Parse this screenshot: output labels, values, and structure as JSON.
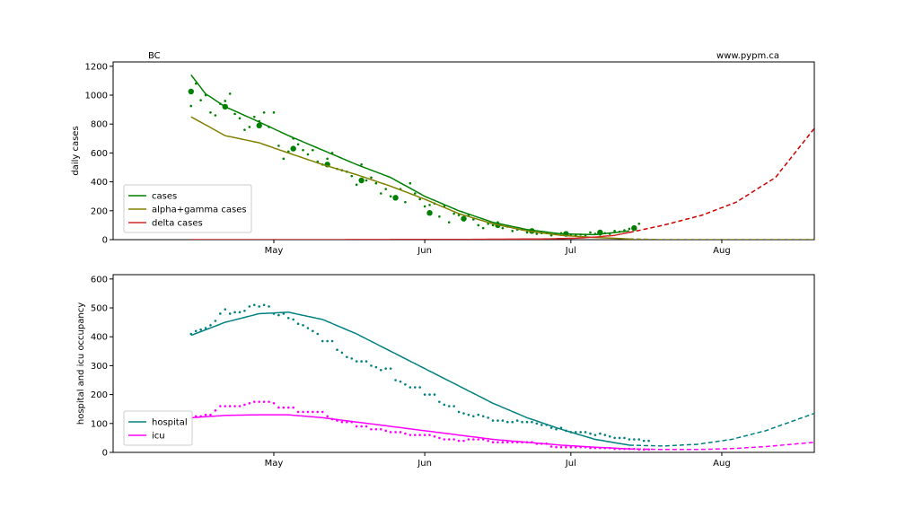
{
  "header": {
    "left": "BC",
    "right": "www.pypm.ca"
  },
  "colors": {
    "cases": "#008000",
    "alpha": "#808000",
    "delta": "#d62728",
    "deltaProj": "#cc0000",
    "hospital": "#008080",
    "icu": "#ff00ff"
  },
  "chart_data": [
    {
      "type": "line",
      "ylabel": "daily cases",
      "ylim": [
        0,
        1230
      ],
      "yticks": [
        0,
        200,
        400,
        600,
        800,
        1000,
        1200
      ],
      "xticks": [
        {
          "day": 30,
          "label": "May"
        },
        {
          "day": 61,
          "label": "Jun"
        },
        {
          "day": 91,
          "label": "Jul"
        },
        {
          "day": 122,
          "label": "Aug"
        }
      ],
      "xlim": [
        -3,
        141
      ],
      "x_unit": "days since Apr 1",
      "data_end_day": 103,
      "legend": [
        "cases",
        "alpha+gamma cases",
        "delta cases"
      ],
      "legend_position": "lower-left",
      "series": [
        {
          "name": "cases",
          "x": [
            13,
            16,
            20,
            26,
            33,
            40,
            47,
            54,
            61,
            68,
            75,
            82,
            89,
            96,
            103
          ],
          "values": [
            1140,
            1010,
            920,
            830,
            720,
            620,
            520,
            430,
            300,
            200,
            120,
            70,
            40,
            35,
            60
          ]
        },
        {
          "name": "alpha+gamma cases",
          "x": [
            13,
            20,
            27,
            33,
            40,
            47,
            54,
            61,
            68,
            75,
            82,
            89,
            96,
            103,
            110,
            141
          ],
          "values": [
            850,
            720,
            670,
            600,
            520,
            450,
            370,
            280,
            180,
            110,
            60,
            30,
            15,
            5,
            0,
            0
          ]
        },
        {
          "name": "delta cases",
          "x": [
            13,
            40,
            70,
            85,
            92,
            96,
            100,
            103,
            110,
            118,
            125,
            133,
            141
          ],
          "values": [
            0,
            0,
            2,
            5,
            10,
            18,
            30,
            50,
            100,
            170,
            260,
            430,
            770
          ]
        }
      ],
      "weekly_points": {
        "x": [
          13,
          20,
          27,
          34,
          41,
          48,
          55,
          62,
          69,
          76,
          83,
          90,
          97,
          104
        ],
        "values": [
          1025,
          920,
          790,
          630,
          520,
          410,
          290,
          185,
          145,
          100,
          60,
          40,
          50,
          80
        ]
      },
      "daily_points": {
        "x": [
          13,
          14,
          15,
          16,
          17,
          18,
          19,
          20,
          21,
          22,
          23,
          24,
          25,
          26,
          27,
          28,
          29,
          30,
          31,
          32,
          33,
          34,
          35,
          36,
          37,
          38,
          39,
          40,
          41,
          42,
          43,
          44,
          45,
          46,
          47,
          48,
          49,
          50,
          51,
          52,
          53,
          54,
          55,
          56,
          57,
          58,
          59,
          60,
          61,
          62,
          63,
          64,
          65,
          66,
          67,
          68,
          69,
          70,
          71,
          72,
          73,
          74,
          75,
          76,
          77,
          78,
          79,
          80,
          81,
          82,
          83,
          84,
          85,
          86,
          87,
          88,
          89,
          90,
          91,
          92,
          93,
          94,
          95,
          96,
          97,
          98,
          99,
          100,
          101,
          102,
          103,
          104,
          105
        ],
        "values": [
          925,
          1080,
          965,
          1000,
          880,
          860,
          940,
          960,
          1010,
          870,
          840,
          760,
          780,
          850,
          820,
          880,
          780,
          880,
          650,
          560,
          610,
          700,
          660,
          620,
          590,
          620,
          540,
          520,
          560,
          600,
          490,
          480,
          470,
          440,
          380,
          520,
          410,
          430,
          390,
          320,
          350,
          300,
          280,
          350,
          260,
          390,
          320,
          280,
          230,
          240,
          250,
          160,
          230,
          120,
          180,
          170,
          140,
          170,
          140,
          100,
          80,
          110,
          100,
          120,
          80,
          90,
          60,
          70,
          70,
          50,
          55,
          40,
          45,
          45,
          30,
          40,
          45,
          40,
          35,
          30,
          35,
          30,
          50,
          40,
          35,
          45,
          40,
          60,
          55,
          65,
          75,
          90,
          110
        ]
      }
    },
    {
      "type": "line",
      "ylabel": "hospital and icu occupancy",
      "ylim": [
        0,
        615
      ],
      "yticks": [
        0,
        100,
        200,
        300,
        400,
        500,
        600
      ],
      "xticks": [
        {
          "day": 30,
          "label": "May"
        },
        {
          "day": 61,
          "label": "Jun"
        },
        {
          "day": 91,
          "label": "Jul"
        },
        {
          "day": 122,
          "label": "Aug"
        }
      ],
      "xlim": [
        -3,
        141
      ],
      "x_unit": "days since Apr 1",
      "data_end_day": 103,
      "legend": [
        "hospital",
        "icu"
      ],
      "legend_position": "lower-left",
      "series": [
        {
          "name": "hospital",
          "x": [
            13,
            20,
            27,
            33,
            40,
            47,
            54,
            61,
            68,
            75,
            82,
            89,
            96,
            103,
            110,
            117,
            124,
            131,
            141
          ],
          "values": [
            405,
            450,
            480,
            485,
            460,
            410,
            350,
            290,
            230,
            170,
            120,
            80,
            45,
            25,
            22,
            28,
            45,
            75,
            135
          ]
        },
        {
          "name": "icu",
          "x": [
            13,
            20,
            27,
            33,
            40,
            47,
            54,
            61,
            68,
            75,
            82,
            89,
            96,
            103,
            110,
            117,
            124,
            131,
            141
          ],
          "values": [
            120,
            128,
            130,
            130,
            120,
            105,
            90,
            75,
            60,
            45,
            35,
            25,
            18,
            12,
            10,
            10,
            13,
            20,
            35
          ]
        }
      ],
      "hospital_points": {
        "x": [
          13,
          14,
          15,
          16,
          17,
          18,
          19,
          20,
          21,
          22,
          23,
          24,
          25,
          26,
          27,
          28,
          29,
          30,
          31,
          32,
          33,
          34,
          35,
          36,
          37,
          38,
          39,
          40,
          41,
          42,
          43,
          44,
          45,
          46,
          47,
          48,
          49,
          50,
          51,
          52,
          53,
          54,
          55,
          56,
          57,
          58,
          59,
          60,
          61,
          62,
          63,
          64,
          65,
          66,
          67,
          68,
          69,
          70,
          71,
          72,
          73,
          74,
          75,
          76,
          77,
          78,
          79,
          80,
          81,
          82,
          83,
          84,
          85,
          86,
          87,
          88,
          89,
          90,
          91,
          92,
          93,
          94,
          95,
          96,
          97,
          98,
          99,
          100,
          101,
          102,
          103,
          104,
          105,
          106,
          107
        ],
        "values": [
          410,
          420,
          425,
          430,
          440,
          455,
          480,
          495,
          480,
          485,
          485,
          490,
          505,
          510,
          505,
          510,
          505,
          480,
          475,
          480,
          465,
          460,
          445,
          440,
          430,
          420,
          410,
          385,
          385,
          385,
          355,
          345,
          330,
          325,
          315,
          315,
          315,
          300,
          295,
          285,
          290,
          290,
          250,
          245,
          235,
          225,
          225,
          225,
          200,
          200,
          200,
          175,
          165,
          160,
          160,
          140,
          135,
          130,
          125,
          130,
          125,
          120,
          110,
          110,
          110,
          105,
          105,
          110,
          105,
          105,
          105,
          100,
          95,
          95,
          85,
          80,
          85,
          75,
          70,
          70,
          70,
          70,
          65,
          60,
          65,
          60,
          55,
          50,
          50,
          50,
          45,
          45,
          45,
          40,
          40
        ]
      },
      "icu_points": {
        "x": [
          13,
          14,
          15,
          16,
          17,
          18,
          19,
          20,
          21,
          22,
          23,
          24,
          25,
          26,
          27,
          28,
          29,
          30,
          31,
          32,
          33,
          34,
          35,
          36,
          37,
          38,
          39,
          40,
          41,
          42,
          43,
          44,
          45,
          46,
          47,
          48,
          49,
          50,
          51,
          52,
          53,
          54,
          55,
          56,
          57,
          58,
          59,
          60,
          61,
          62,
          63,
          64,
          65,
          66,
          67,
          68,
          69,
          70,
          71,
          72,
          73,
          74,
          75,
          76,
          77,
          78,
          79,
          80,
          81,
          82,
          83,
          84,
          85,
          86,
          87,
          88,
          89,
          90,
          91,
          92,
          93,
          94,
          95,
          96,
          97,
          98,
          99,
          100,
          101,
          102,
          103,
          104,
          105,
          106,
          107
        ],
        "values": [
          125,
          125,
          125,
          130,
          130,
          145,
          160,
          160,
          160,
          160,
          160,
          165,
          170,
          175,
          175,
          175,
          175,
          170,
          155,
          155,
          155,
          155,
          140,
          140,
          140,
          140,
          140,
          140,
          125,
          115,
          110,
          105,
          105,
          105,
          90,
          90,
          90,
          80,
          80,
          80,
          75,
          70,
          70,
          70,
          65,
          60,
          60,
          60,
          60,
          60,
          55,
          50,
          45,
          45,
          45,
          40,
          40,
          45,
          45,
          45,
          45,
          40,
          35,
          35,
          35,
          35,
          35,
          35,
          35,
          35,
          35,
          30,
          30,
          30,
          20,
          18,
          18,
          18,
          18,
          18,
          18,
          18,
          15,
          15,
          15,
          15,
          15,
          12,
          12,
          12,
          12,
          12,
          10,
          10,
          10
        ]
      }
    }
  ]
}
